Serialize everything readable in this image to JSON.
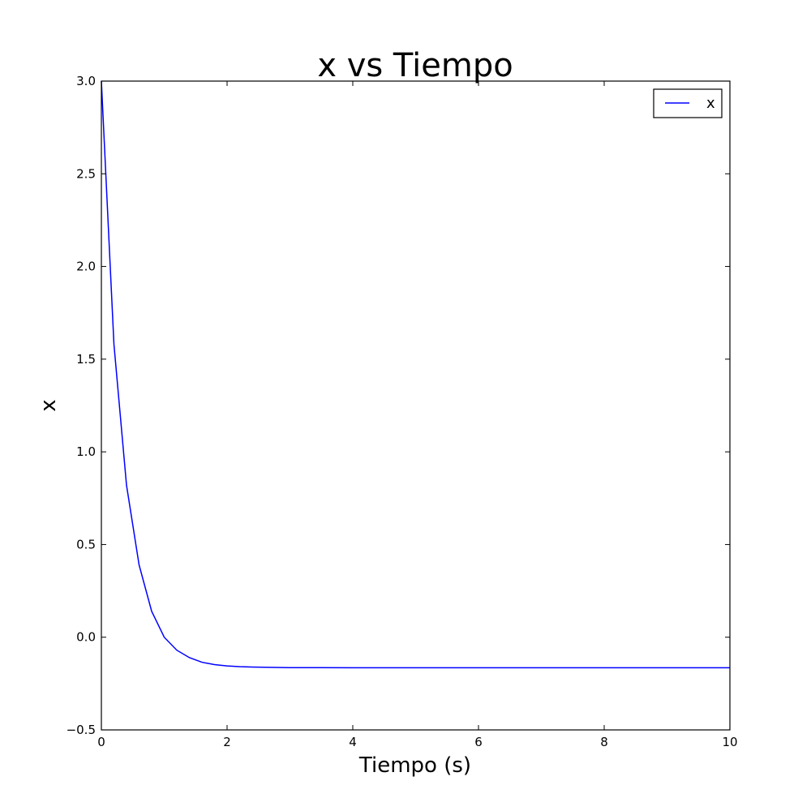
{
  "chart_data": {
    "type": "line",
    "title": "x vs Tiempo",
    "xlabel": "Tiempo (s)",
    "ylabel": "x",
    "xlim": [
      0,
      10
    ],
    "ylim": [
      -0.5,
      3.0
    ],
    "xticks": [
      0,
      2,
      4,
      6,
      8,
      10
    ],
    "xtick_labels": [
      "0",
      "2",
      "4",
      "6",
      "8",
      "10"
    ],
    "yticks": [
      -0.5,
      0.0,
      0.5,
      1.0,
      1.5,
      2.0,
      2.5,
      3.0
    ],
    "ytick_labels": [
      "−0.5",
      "0.0",
      "0.5",
      "1.0",
      "1.5",
      "2.0",
      "2.5",
      "3.0"
    ],
    "grid": false,
    "legend_position": "top-right",
    "series": [
      {
        "name": "x",
        "color": "#0000ff",
        "x": [
          0,
          0.2,
          0.4,
          0.6,
          0.8,
          1.0,
          1.2,
          1.4,
          1.6,
          1.8,
          2.0,
          2.2,
          2.4,
          2.6,
          2.8,
          3.0,
          3.5,
          4.0,
          5.0,
          6.0,
          7.0,
          8.0,
          9.0,
          10.0
        ],
        "y": [
          3.0,
          1.58,
          0.82,
          0.39,
          0.14,
          0.0,
          -0.07,
          -0.11,
          -0.135,
          -0.148,
          -0.155,
          -0.159,
          -0.161,
          -0.162,
          -0.163,
          -0.164,
          -0.164,
          -0.165,
          -0.165,
          -0.165,
          -0.165,
          -0.165,
          -0.165,
          -0.165
        ]
      }
    ]
  }
}
